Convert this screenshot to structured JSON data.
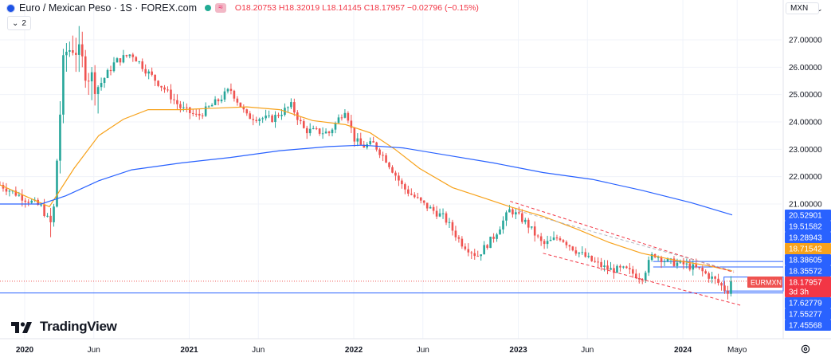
{
  "header": {
    "symbol_title": "Euro / Mexican Peso · 1S · FOREX.com",
    "open": "O18.20753",
    "high": "H18.32019",
    "low": "L18.14145",
    "close": "C18.17957",
    "change": "−0.02796 (−0.15%)",
    "indicators_count": "2",
    "currency": "MXN"
  },
  "brand": "TradingView",
  "colors": {
    "up": "#26a69a",
    "down": "#ef5350",
    "ma_fast": "#f7a21b",
    "ma_slow": "#2962ff",
    "channel": "#f23645",
    "level": "#2962ff"
  },
  "chart_data": {
    "type": "candlestick",
    "title": "Euro / Mexican Peso · 1S · FOREX.com",
    "x_ticks": [
      "2020",
      "Jun",
      "2021",
      "Jun",
      "2022",
      "Jun",
      "2023",
      "Jun",
      "2024",
      "Mayo"
    ],
    "y_ticks": [
      "27.00000",
      "26.00000",
      "25.00000",
      "24.00000",
      "23.00000",
      "22.00000",
      "21.00000"
    ],
    "ylim": [
      17.3,
      28.2
    ],
    "grid": true,
    "close_path": [
      {
        "t": 2019.85,
        "v": 21.7
      },
      {
        "t": 2020.0,
        "v": 21.2
      },
      {
        "t": 2020.1,
        "v": 20.9
      },
      {
        "t": 2020.17,
        "v": 20.1
      },
      {
        "t": 2020.2,
        "v": 23.0
      },
      {
        "t": 2020.24,
        "v": 26.5
      },
      {
        "t": 2020.3,
        "v": 26.8
      },
      {
        "t": 2020.38,
        "v": 25.8
      },
      {
        "t": 2020.45,
        "v": 25.3
      },
      {
        "t": 2020.55,
        "v": 26.2
      },
      {
        "t": 2020.65,
        "v": 26.5
      },
      {
        "t": 2020.75,
        "v": 25.8
      },
      {
        "t": 2020.85,
        "v": 25.2
      },
      {
        "t": 2020.95,
        "v": 24.5
      },
      {
        "t": 2021.05,
        "v": 24.2
      },
      {
        "t": 2021.18,
        "v": 24.8
      },
      {
        "t": 2021.25,
        "v": 25.2
      },
      {
        "t": 2021.35,
        "v": 24.2
      },
      {
        "t": 2021.5,
        "v": 24.1
      },
      {
        "t": 2021.62,
        "v": 24.6
      },
      {
        "t": 2021.7,
        "v": 23.7
      },
      {
        "t": 2021.85,
        "v": 23.6
      },
      {
        "t": 2021.95,
        "v": 24.5
      },
      {
        "t": 2022.0,
        "v": 23.4
      },
      {
        "t": 2022.05,
        "v": 23.1
      },
      {
        "t": 2022.12,
        "v": 23.2
      },
      {
        "t": 2022.2,
        "v": 22.6
      },
      {
        "t": 2022.3,
        "v": 21.6
      },
      {
        "t": 2022.42,
        "v": 21.0
      },
      {
        "t": 2022.55,
        "v": 20.5
      },
      {
        "t": 2022.65,
        "v": 19.6
      },
      {
        "t": 2022.75,
        "v": 19.1
      },
      {
        "t": 2022.85,
        "v": 19.8
      },
      {
        "t": 2022.95,
        "v": 20.8
      },
      {
        "t": 2023.05,
        "v": 20.3
      },
      {
        "t": 2023.15,
        "v": 19.5
      },
      {
        "t": 2023.25,
        "v": 19.8
      },
      {
        "t": 2023.35,
        "v": 19.3
      },
      {
        "t": 2023.45,
        "v": 18.9
      },
      {
        "t": 2023.55,
        "v": 18.6
      },
      {
        "t": 2023.65,
        "v": 18.6
      },
      {
        "t": 2023.75,
        "v": 18.3
      },
      {
        "t": 2023.82,
        "v": 19.2
      },
      {
        "t": 2023.9,
        "v": 18.9
      },
      {
        "t": 2024.0,
        "v": 18.8
      },
      {
        "t": 2024.1,
        "v": 18.6
      },
      {
        "t": 2024.2,
        "v": 18.2
      },
      {
        "t": 2024.27,
        "v": 17.8
      },
      {
        "t": 2024.31,
        "v": 18.18
      }
    ],
    "series": [
      {
        "name": "",
        "type": "moving_average_fast",
        "color": "#f7a21b",
        "points": [
          [
            2019.85,
            21.7
          ],
          [
            2020.0,
            21.3
          ],
          [
            2020.15,
            20.9
          ],
          [
            2020.3,
            22.3
          ],
          [
            2020.45,
            23.5
          ],
          [
            2020.6,
            24.1
          ],
          [
            2020.75,
            24.45
          ],
          [
            2020.95,
            24.45
          ],
          [
            2021.15,
            24.5
          ],
          [
            2021.35,
            24.55
          ],
          [
            2021.55,
            24.45
          ],
          [
            2021.75,
            24.05
          ],
          [
            2021.95,
            23.9
          ],
          [
            2022.1,
            23.6
          ],
          [
            2022.25,
            23.0
          ],
          [
            2022.4,
            22.3
          ],
          [
            2022.6,
            21.6
          ],
          [
            2022.8,
            21.2
          ],
          [
            2022.95,
            20.9
          ],
          [
            2023.15,
            20.55
          ],
          [
            2023.35,
            20.1
          ],
          [
            2023.55,
            19.6
          ],
          [
            2023.75,
            19.2
          ],
          [
            2023.95,
            18.95
          ],
          [
            2024.15,
            18.75
          ],
          [
            2024.3,
            18.55
          ]
        ]
      },
      {
        "name": "",
        "type": "moving_average_slow",
        "color": "#2962ff",
        "points": [
          [
            2019.85,
            21.0
          ],
          [
            2020.1,
            21.0
          ],
          [
            2020.25,
            21.3
          ],
          [
            2020.45,
            21.85
          ],
          [
            2020.65,
            22.25
          ],
          [
            2020.95,
            22.5
          ],
          [
            2021.25,
            22.7
          ],
          [
            2021.55,
            22.95
          ],
          [
            2021.85,
            23.1
          ],
          [
            2022.05,
            23.15
          ],
          [
            2022.3,
            23.05
          ],
          [
            2022.55,
            22.8
          ],
          [
            2022.85,
            22.5
          ],
          [
            2023.15,
            22.15
          ],
          [
            2023.45,
            21.9
          ],
          [
            2023.75,
            21.5
          ],
          [
            2024.05,
            21.05
          ],
          [
            2024.3,
            20.6
          ]
        ]
      }
    ],
    "price_labels": [
      {
        "text": "20.52901",
        "value": 20.52901
      },
      {
        "text": "19.51582",
        "value": 19.51582
      },
      {
        "text": "19.28943",
        "value": 19.28943
      },
      {
        "text": "18.71542",
        "value": 18.71542
      },
      {
        "text": "18.38605",
        "value": 18.38605
      },
      {
        "text": "18.35572",
        "value": 18.35572
      },
      {
        "text": "18.17957",
        "value": 18.17957
      },
      {
        "text": "17.62779",
        "value": 17.62779
      },
      {
        "text": "17.55277",
        "value": 17.55277
      },
      {
        "text": "17.45568",
        "value": 17.45568
      }
    ],
    "horizontal_levels": [
      18.9,
      18.7,
      17.75
    ],
    "current_tag": {
      "symbol": "EURMXN",
      "price": "18.17957",
      "countdown": "3d 3h"
    },
    "channel": {
      "upper": [
        [
          2022.95,
          21.1
        ],
        [
          2024.31,
          18.5
        ]
      ],
      "lower": [
        [
          2023.15,
          19.2
        ],
        [
          2024.35,
          17.3
        ]
      ]
    }
  }
}
